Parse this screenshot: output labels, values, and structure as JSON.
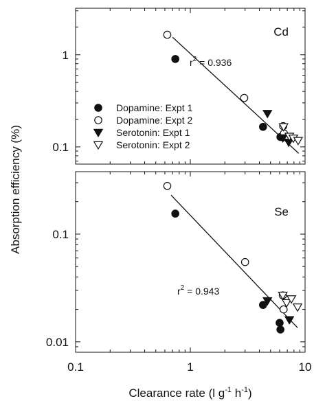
{
  "figure": {
    "y_axis_label": "Absorption efficiency (%)",
    "x_axis_label": "Clearance rate (l g",
    "x_axis_label_exp1": "-1",
    "x_axis_label_mid": " h",
    "x_axis_label_exp2": "-1",
    "x_axis_label_end": ")"
  },
  "legend": {
    "entries": [
      {
        "label": "Dopamine: Expt 1",
        "marker": "filled-circle"
      },
      {
        "label": "Dopamine: Expt 2",
        "marker": "open-circle"
      },
      {
        "label": "Serotonin: Expt 1",
        "marker": "filled-triangle-down"
      },
      {
        "label": "Serotonin: Expt 2",
        "marker": "open-triangle-down"
      }
    ]
  },
  "colors": {
    "ink": "#111111",
    "background": "#ffffff"
  },
  "chart_data": [
    {
      "type": "scatter",
      "panel_label": "Cd",
      "r2_label": "r",
      "r2_exp": "2",
      "r2_value": " = 0.936",
      "x_scale": "log",
      "y_scale": "log",
      "xlim": [
        0.1,
        10
      ],
      "ylim": [
        0.065,
        3.2
      ],
      "x_ticks": [
        0.1,
        1,
        10
      ],
      "y_ticks": [
        0.1,
        1
      ],
      "y_tick_labels": [
        "0.1",
        "1"
      ],
      "regression_line": {
        "x": [
          0.7,
          8.8
        ],
        "y": [
          1.55,
          0.085
        ]
      },
      "series": [
        {
          "name": "Dopamine: Expt 1",
          "marker": "filled-circle",
          "x": [
            0.74,
            4.3,
            6.1
          ],
          "y": [
            0.9,
            0.165,
            0.128
          ]
        },
        {
          "name": "Dopamine: Expt 2",
          "marker": "open-circle",
          "x": [
            0.63,
            2.95,
            6.45,
            6.55
          ],
          "y": [
            1.65,
            0.34,
            0.168,
            0.14
          ]
        },
        {
          "name": "Serotonin: Expt 1",
          "marker": "filled-triangle-down",
          "x": [
            4.7,
            6.4,
            7.2
          ],
          "y": [
            0.23,
            0.125,
            0.112
          ]
        },
        {
          "name": "Serotonin: Expt 2",
          "marker": "open-triangle-down",
          "x": [
            6.5,
            7.3,
            7.9,
            8.7
          ],
          "y": [
            0.165,
            0.13,
            0.124,
            0.117
          ]
        }
      ]
    },
    {
      "type": "scatter",
      "panel_label": "Se",
      "r2_label": "r",
      "r2_exp": "2",
      "r2_value": " = 0.943",
      "x_scale": "log",
      "y_scale": "log",
      "xlim": [
        0.1,
        10
      ],
      "ylim": [
        0.008,
        0.38
      ],
      "x_ticks": [
        0.1,
        1,
        10
      ],
      "x_tick_labels": [
        "0.1",
        "1",
        "10"
      ],
      "y_ticks": [
        0.01,
        0.1
      ],
      "y_tick_labels": [
        "0.01",
        "0.1"
      ],
      "regression_line": {
        "x": [
          0.68,
          8.6
        ],
        "y": [
          0.23,
          0.0135
        ]
      },
      "series": [
        {
          "name": "Dopamine: Expt 1",
          "marker": "filled-circle",
          "x": [
            0.74,
            4.3,
            6.0,
            6.1
          ],
          "y": [
            0.155,
            0.022,
            0.015,
            0.013
          ]
        },
        {
          "name": "Dopamine: Expt 2",
          "marker": "open-circle",
          "x": [
            0.63,
            3.0,
            6.4,
            6.5
          ],
          "y": [
            0.28,
            0.055,
            0.027,
            0.02
          ]
        },
        {
          "name": "Serotonin: Expt 1",
          "marker": "filled-triangle-down",
          "x": [
            4.7,
            7.3
          ],
          "y": [
            0.024,
            0.016
          ]
        },
        {
          "name": "Serotonin: Expt 2",
          "marker": "open-triangle-down",
          "x": [
            6.4,
            6.9,
            7.6,
            8.6
          ],
          "y": [
            0.027,
            0.023,
            0.025,
            0.021
          ]
        }
      ]
    }
  ]
}
